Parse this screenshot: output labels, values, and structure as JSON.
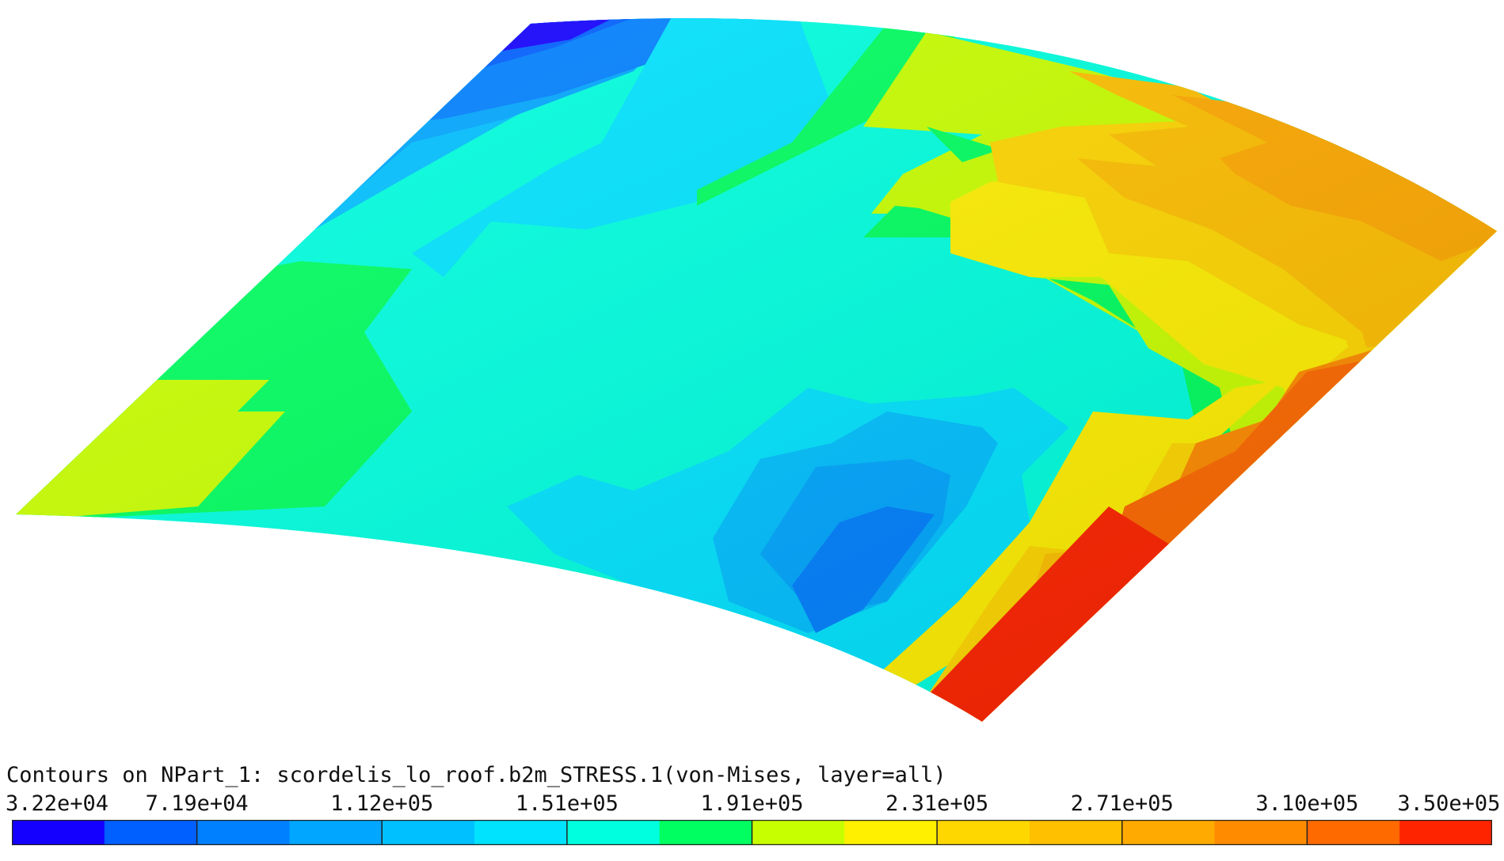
{
  "title": "Contours on NPart_1: scordelis_lo_roof.b2m_STRESS.1(von-Mises, layer=all)",
  "legend": {
    "tick_labels": [
      "3.22e+04",
      "7.19e+04",
      "1.12e+05",
      "1.51e+05",
      "1.91e+05",
      "2.31e+05",
      "2.71e+05",
      "3.10e+05",
      "3.50e+05"
    ],
    "colors": [
      "#1400ff",
      "#005fff",
      "#0080ff",
      "#00a6ff",
      "#00c0ff",
      "#00e3ff",
      "#00ffdf",
      "#00ff60",
      "#c8ff00",
      "#fff000",
      "#ffd700",
      "#ffc000",
      "#ffaa00",
      "#ff8c00",
      "#ff6a00",
      "#ff2400"
    ]
  },
  "viewport": {
    "colors": {
      "deep_blue": "#1400ff",
      "blue": "#005fff",
      "mid_blue": "#0080ff",
      "light_blue": "#00a6ff",
      "sky": "#00c0ff",
      "cyan": "#00e3ff",
      "aqua": "#00ffdf",
      "green": "#00ff60",
      "lime": "#c8ff00",
      "yellow": "#fff000",
      "gold": "#ffd700",
      "amber": "#ffc000",
      "orange_light": "#ffaa00",
      "orange": "#ff8c00",
      "orange_deep": "#ff6a00",
      "red": "#ff2400"
    }
  }
}
